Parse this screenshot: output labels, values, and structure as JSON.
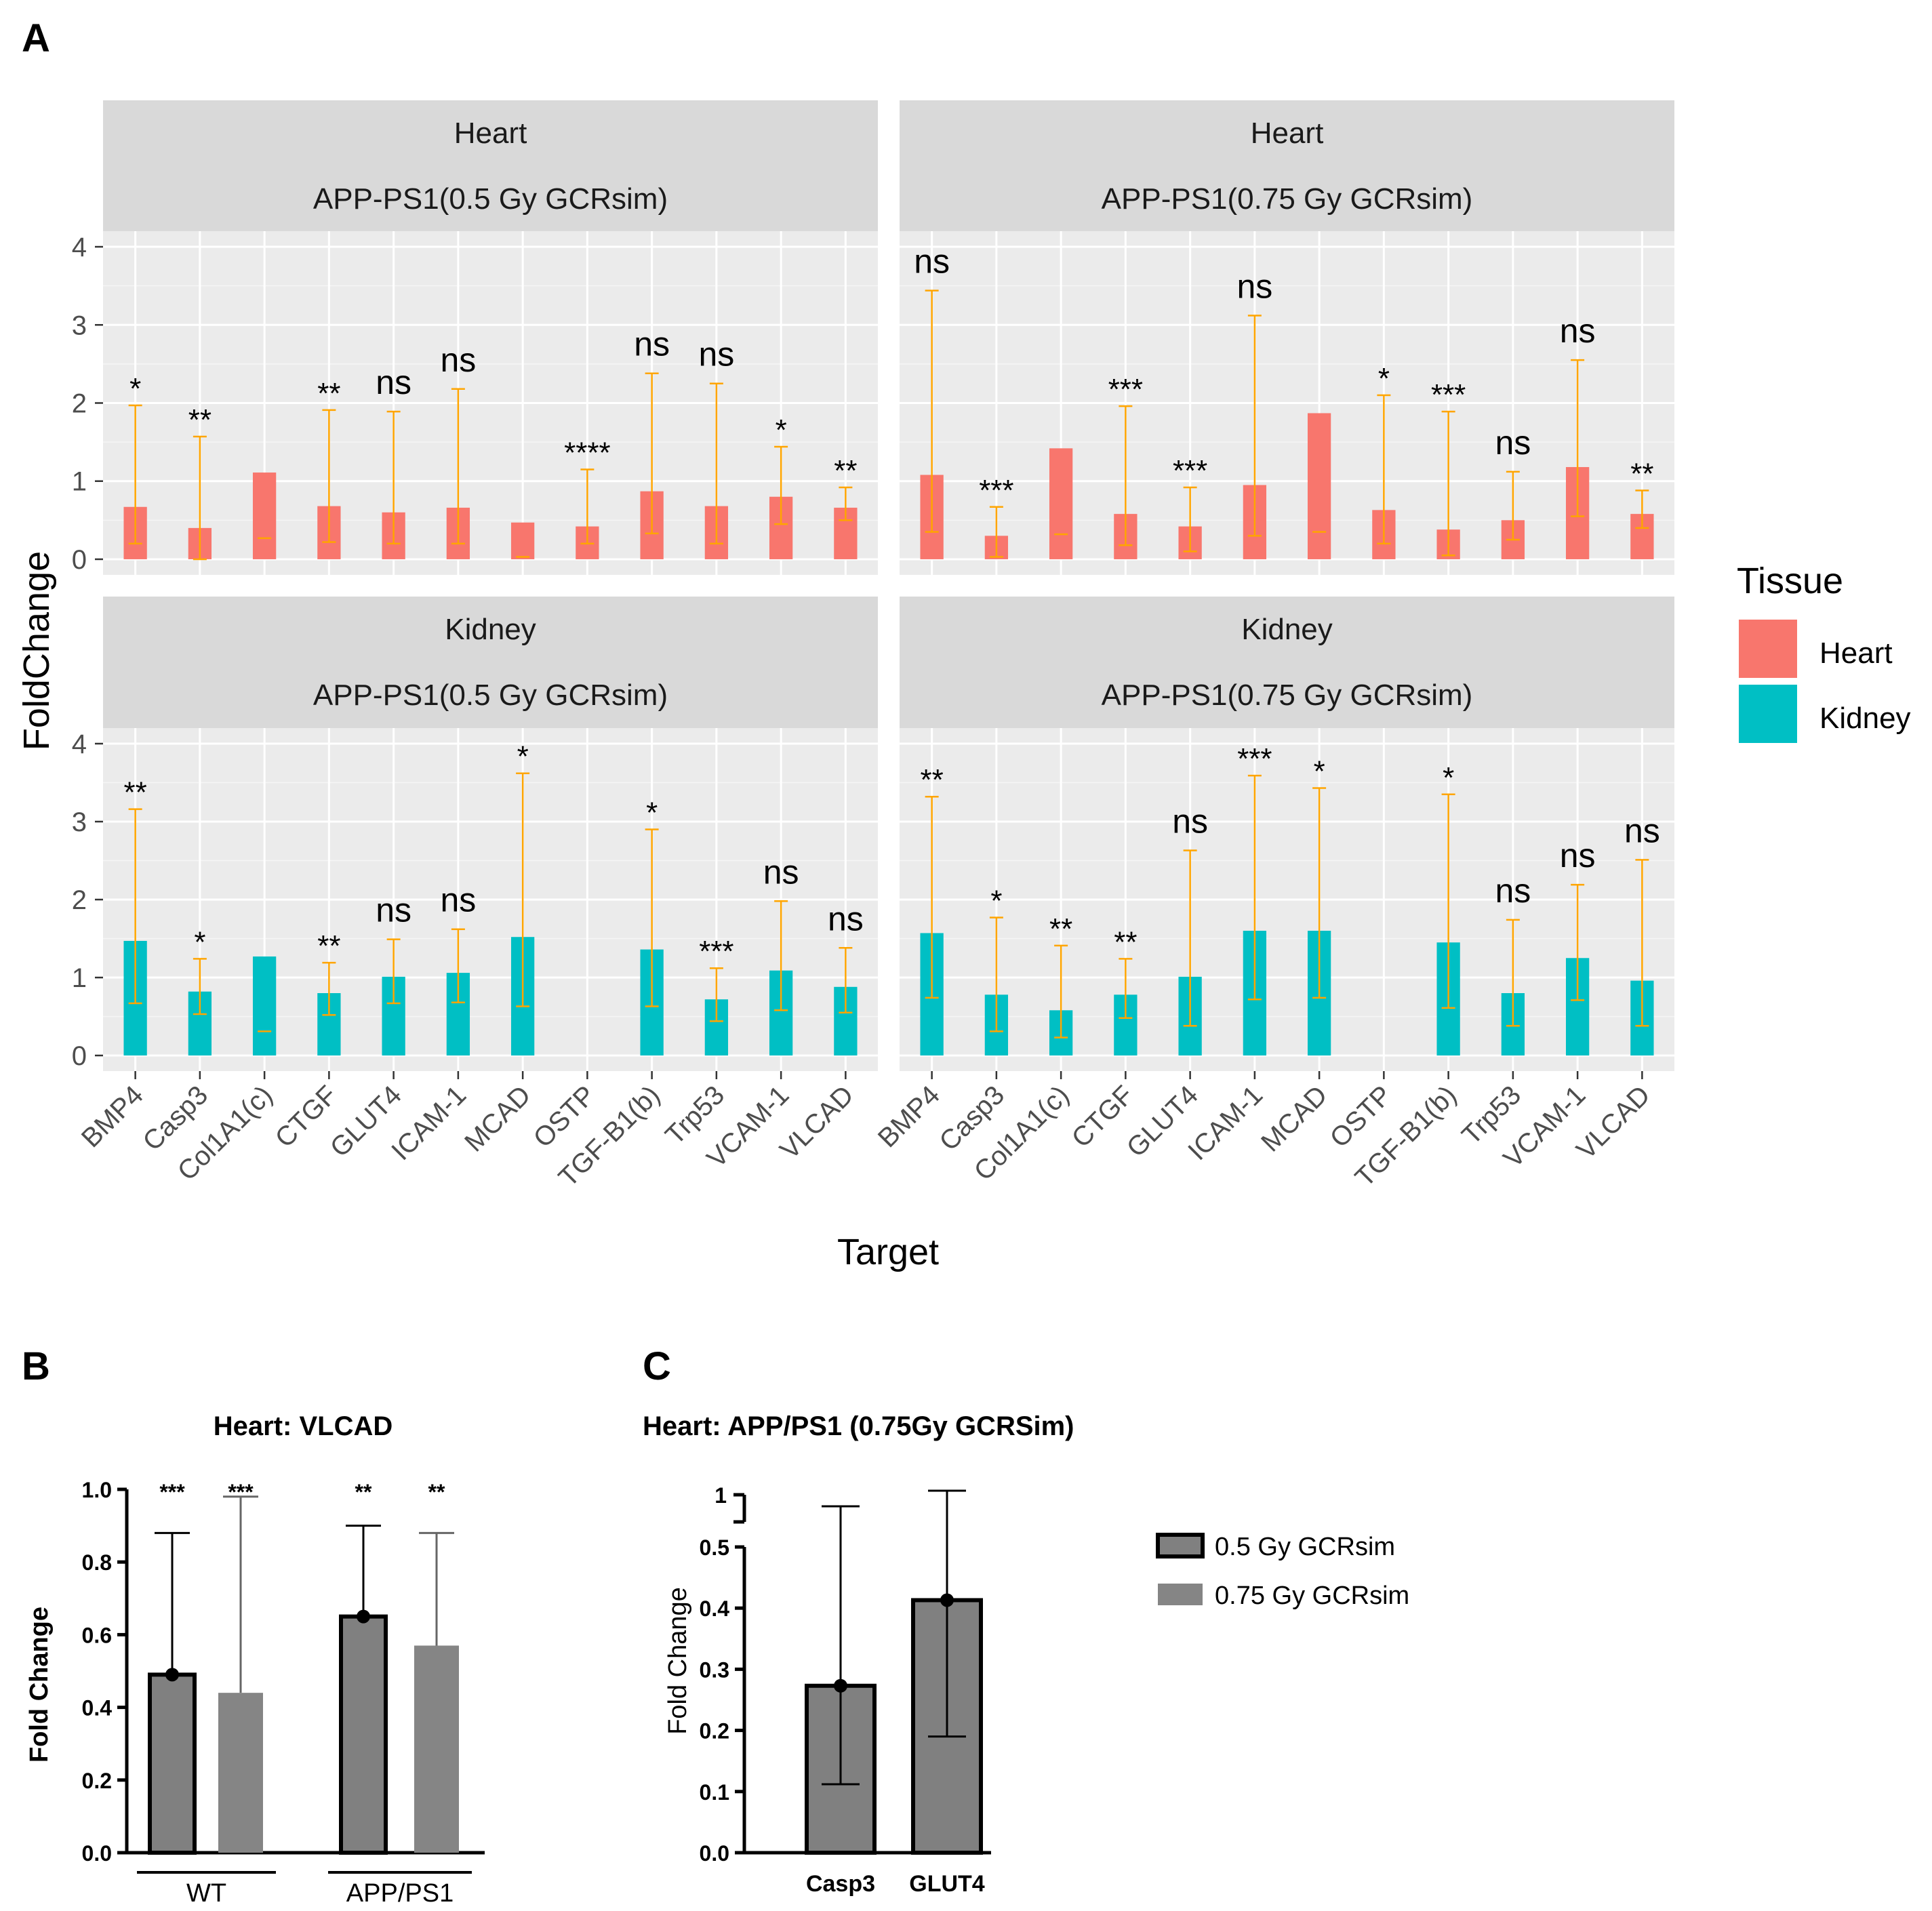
{
  "figure": {
    "panel_a_letter": "A",
    "panel_b_letter": "B",
    "panel_c_letter": "C"
  },
  "colors": {
    "heart": "#F8766D",
    "kidney": "#00BFC4",
    "error": "#FFA500",
    "panel_bg": "#EBEBEB",
    "strip_bg": "#D9D9D9",
    "bar_dark": "#808080",
    "bar_light": "#858585"
  },
  "chart_data": [
    {
      "id": "A",
      "type": "bar",
      "xlabel": "Target",
      "ylabel": "FoldChange",
      "ylim": [
        -0.2,
        4.2
      ],
      "yticks": [
        "0",
        "1",
        "2",
        "3",
        "4"
      ],
      "categories": [
        "BMP4",
        "Casp3",
        "Col1A1(c)",
        "CTGF",
        "GLUT4",
        "ICAM-1",
        "MCAD",
        "OSTP",
        "TGF-B1(b)",
        "Trp53",
        "VCAM-1",
        "VLCAD"
      ],
      "legend": {
        "title": "Tissue",
        "entries": [
          "Heart",
          "Kidney"
        ]
      },
      "facets": [
        {
          "strip": [
            "Heart",
            "APP-PS1(0.5 Gy GCRsim)"
          ],
          "tissue": "heart",
          "values": [
            0.67,
            0.4,
            1.11,
            0.68,
            0.6,
            0.66,
            0.47,
            0.42,
            0.87,
            0.68,
            0.8,
            0.66
          ],
          "err_low": [
            0.2,
            0.0,
            0.27,
            0.22,
            0.2,
            0.2,
            0.03,
            0.2,
            0.33,
            0.2,
            0.45,
            0.5
          ],
          "err_high": [
            1.97,
            1.57,
            null,
            1.91,
            1.89,
            2.18,
            null,
            1.15,
            2.38,
            2.25,
            1.44,
            0.92
          ],
          "sig": [
            "*",
            "**",
            "",
            "**",
            "ns",
            "ns",
            "",
            "****",
            "ns",
            "ns",
            "*",
            "**"
          ]
        },
        {
          "strip": [
            "Heart",
            "APP-PS1(0.75 Gy GCRsim)"
          ],
          "tissue": "heart",
          "values": [
            1.08,
            0.3,
            1.42,
            0.58,
            0.42,
            0.95,
            1.87,
            0.63,
            0.38,
            0.5,
            1.18,
            0.58
          ],
          "err_low": [
            0.35,
            0.03,
            0.32,
            0.18,
            0.1,
            0.3,
            0.35,
            0.2,
            0.05,
            0.25,
            0.55,
            0.4
          ],
          "err_high": [
            3.44,
            0.67,
            null,
            1.96,
            0.92,
            3.12,
            null,
            2.1,
            1.89,
            1.12,
            2.55,
            0.88
          ],
          "sig": [
            "ns",
            "***",
            "",
            "***",
            "***",
            "ns",
            "",
            "*",
            "***",
            "ns",
            "ns",
            "**"
          ]
        },
        {
          "strip": [
            "Kidney",
            "APP-PS1(0.5 Gy GCRsim)"
          ],
          "tissue": "kidney",
          "values": [
            1.47,
            0.82,
            1.27,
            0.8,
            1.01,
            1.06,
            1.52,
            null,
            1.36,
            0.72,
            1.09,
            0.88
          ],
          "err_low": [
            0.67,
            0.53,
            0.31,
            0.52,
            0.67,
            0.68,
            0.63,
            null,
            0.63,
            0.44,
            0.58,
            0.55
          ],
          "err_high": [
            3.16,
            1.24,
            null,
            1.19,
            1.49,
            1.62,
            3.62,
            null,
            2.9,
            1.12,
            1.98,
            1.38
          ],
          "sig": [
            "**",
            "*",
            "",
            "**",
            "ns",
            "ns",
            "*",
            "",
            "*",
            "***",
            "ns",
            "ns"
          ]
        },
        {
          "strip": [
            "Kidney",
            "APP-PS1(0.75 Gy GCRsim)"
          ],
          "tissue": "kidney",
          "values": [
            1.57,
            0.78,
            0.58,
            0.78,
            1.01,
            1.6,
            1.6,
            null,
            1.45,
            0.8,
            1.25,
            0.96
          ],
          "err_low": [
            0.74,
            0.31,
            0.23,
            0.48,
            0.38,
            0.72,
            0.74,
            null,
            0.61,
            0.38,
            0.71,
            0.38
          ],
          "err_high": [
            3.32,
            1.77,
            1.41,
            1.24,
            2.63,
            3.59,
            3.43,
            null,
            3.35,
            1.74,
            2.19,
            2.51
          ],
          "sig": [
            "**",
            "*",
            "**",
            "**",
            "ns",
            "***",
            "*",
            "",
            "*",
            "ns",
            "ns",
            "ns"
          ]
        }
      ]
    },
    {
      "id": "B",
      "type": "bar",
      "title": "Heart: VLCAD",
      "ylabel": "Fold Change",
      "ylim": [
        0,
        1.0
      ],
      "yticks": [
        "0.0",
        "0.2",
        "0.4",
        "0.6",
        "0.8",
        "1.0"
      ],
      "groups": [
        "WT",
        "APP/PS1"
      ],
      "series": [
        {
          "name": "0.5 Gy GCRsim",
          "values": [
            0.49,
            0.65
          ],
          "err_high": [
            0.88,
            0.9
          ],
          "sig": [
            "***",
            "**"
          ]
        },
        {
          "name": "0.75 Gy GCRsim",
          "values": [
            0.44,
            0.57
          ],
          "err_high": [
            0.98,
            0.88
          ],
          "sig": [
            "***",
            "**"
          ]
        }
      ]
    },
    {
      "id": "C",
      "type": "bar",
      "title": "Heart: APP/PS1 (0.75Gy GCRSim)",
      "ylabel": "Fold Change",
      "ylim": [
        0,
        0.5
      ],
      "axis_break_label": "1",
      "yticks": [
        "0.0",
        "0.1",
        "0.2",
        "0.3",
        "0.4",
        "0.5"
      ],
      "categories": [
        "Casp3",
        "GLUT4"
      ],
      "values": [
        0.273,
        0.413
      ],
      "err_low": [
        0.112,
        0.19
      ],
      "err_high_broken": [
        true,
        true
      ]
    }
  ]
}
